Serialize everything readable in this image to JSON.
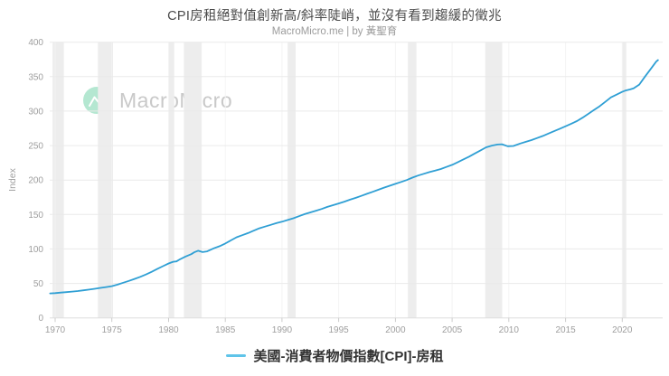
{
  "header": {
    "title": "CPI房租絕對值創新高/斜率陡峭，並沒有看到趨緩的徵兆",
    "subtitle": "MacroMicro.me | by 黃聖育"
  },
  "watermark": {
    "brand": "MacroMicro",
    "logo_icon": "zigzag-m-chart-icon",
    "circle_color": "#b4e7d1",
    "text_color": "#c9c9c9"
  },
  "colors": {
    "line": "#2f9fd4",
    "legend_marker": "#5fc4e9",
    "grid": "#eaeaea",
    "grid_zero": "#dedede",
    "grid_vertical": "#f4f4f4",
    "recession_band": "#ededed",
    "tick_mark": "#cccccc",
    "tick_label": "#9e9e9e"
  },
  "chart_data": {
    "type": "line",
    "title": "CPI房租絕對值創新高/斜率陡峭，並沒有看到趨緩的徵兆",
    "subtitle": "MacroMicro.me | by 黃聖育",
    "xlabel": "",
    "ylabel": "Index",
    "xlim": [
      1969.4,
      2023.8
    ],
    "ylim": [
      0,
      400
    ],
    "xticks": [
      1970,
      1975,
      1980,
      1985,
      1990,
      1995,
      2000,
      2005,
      2010,
      2015,
      2020
    ],
    "yticks": [
      0,
      50,
      100,
      150,
      200,
      250,
      300,
      350,
      400
    ],
    "grid": true,
    "legend_position": "bottom",
    "recession_bands": [
      [
        1969.78,
        1970.77
      ],
      [
        1973.77,
        1975.1
      ],
      [
        1979.98,
        1980.5
      ],
      [
        1981.35,
        1982.92
      ],
      [
        1990.5,
        1991.2
      ],
      [
        2001.1,
        2001.85
      ],
      [
        2007.92,
        2009.42
      ],
      [
        2020.0,
        2020.35
      ]
    ],
    "series": [
      {
        "name": "美國-消費者物價指數[CPI]-房租",
        "color": "#2f9fd4",
        "points": [
          [
            1969.55,
            35.5
          ],
          [
            1970,
            36
          ],
          [
            1970.5,
            36.7
          ],
          [
            1971,
            37.4
          ],
          [
            1971.5,
            38.2
          ],
          [
            1972,
            39
          ],
          [
            1972.5,
            40
          ],
          [
            1973,
            41
          ],
          [
            1973.5,
            42.2
          ],
          [
            1974,
            43.5
          ],
          [
            1974.5,
            44.7
          ],
          [
            1975,
            46
          ],
          [
            1975.5,
            48.3
          ],
          [
            1976,
            51
          ],
          [
            1976.5,
            53.6
          ],
          [
            1977,
            56.5
          ],
          [
            1977.5,
            59.6
          ],
          [
            1978,
            63
          ],
          [
            1978.5,
            66.8
          ],
          [
            1979,
            71
          ],
          [
            1979.5,
            75
          ],
          [
            1980,
            79
          ],
          [
            1980.4,
            81.5
          ],
          [
            1980.7,
            82
          ],
          [
            1981,
            85
          ],
          [
            1981.5,
            89
          ],
          [
            1982,
            92.5
          ],
          [
            1982.3,
            95.5
          ],
          [
            1982.6,
            97.5
          ],
          [
            1983,
            95.5
          ],
          [
            1983.4,
            96.5
          ],
          [
            1984,
            101
          ],
          [
            1984.5,
            104
          ],
          [
            1985,
            108
          ],
          [
            1985.5,
            112.5
          ],
          [
            1986,
            117
          ],
          [
            1986.5,
            120
          ],
          [
            1987,
            123
          ],
          [
            1987.5,
            126.5
          ],
          [
            1988,
            130
          ],
          [
            1988.5,
            132.5
          ],
          [
            1989,
            135
          ],
          [
            1989.5,
            137.5
          ],
          [
            1990,
            139.5
          ],
          [
            1990.5,
            142
          ],
          [
            1991,
            144.5
          ],
          [
            1991.5,
            147.5
          ],
          [
            1992,
            150.5
          ],
          [
            1992.5,
            153
          ],
          [
            1993,
            155.5
          ],
          [
            1993.5,
            158
          ],
          [
            1994,
            161
          ],
          [
            1994.5,
            163.5
          ],
          [
            1995,
            166
          ],
          [
            1995.5,
            168.7
          ],
          [
            1996,
            171.5
          ],
          [
            1996.5,
            174.2
          ],
          [
            1997,
            177
          ],
          [
            1997.5,
            180
          ],
          [
            1998,
            183
          ],
          [
            1998.5,
            186
          ],
          [
            1999,
            189
          ],
          [
            1999.5,
            191.7
          ],
          [
            2000,
            194.5
          ],
          [
            2000.5,
            197.2
          ],
          [
            2001,
            200
          ],
          [
            2001.5,
            203.5
          ],
          [
            2002,
            206.5
          ],
          [
            2002.5,
            209
          ],
          [
            2003,
            211.5
          ],
          [
            2003.5,
            213.7
          ],
          [
            2004,
            216
          ],
          [
            2004.5,
            219
          ],
          [
            2005,
            222
          ],
          [
            2005.5,
            226
          ],
          [
            2006,
            230
          ],
          [
            2006.5,
            234
          ],
          [
            2007,
            238.5
          ],
          [
            2007.5,
            243
          ],
          [
            2008,
            247.5
          ],
          [
            2008.5,
            250
          ],
          [
            2009,
            251.5
          ],
          [
            2009.4,
            252
          ],
          [
            2009.9,
            249
          ],
          [
            2010.4,
            249.5
          ],
          [
            2011,
            253
          ],
          [
            2011.5,
            255.5
          ],
          [
            2012,
            258
          ],
          [
            2012.5,
            261
          ],
          [
            2013,
            264
          ],
          [
            2013.5,
            267.5
          ],
          [
            2014,
            271
          ],
          [
            2014.5,
            274.5
          ],
          [
            2015,
            278
          ],
          [
            2015.5,
            281.7
          ],
          [
            2016,
            285.5
          ],
          [
            2016.5,
            290.5
          ],
          [
            2017,
            296
          ],
          [
            2017.5,
            301.5
          ],
          [
            2018,
            307
          ],
          [
            2018.5,
            313.5
          ],
          [
            2019,
            320
          ],
          [
            2019.5,
            324
          ],
          [
            2020,
            328
          ],
          [
            2020.3,
            330
          ],
          [
            2020.7,
            331.5
          ],
          [
            2021,
            333
          ],
          [
            2021.5,
            338.5
          ],
          [
            2022,
            350
          ],
          [
            2022.5,
            361
          ],
          [
            2023,
            372
          ],
          [
            2023.15,
            374
          ]
        ]
      }
    ]
  },
  "legend": {
    "marker": "line-dash"
  }
}
